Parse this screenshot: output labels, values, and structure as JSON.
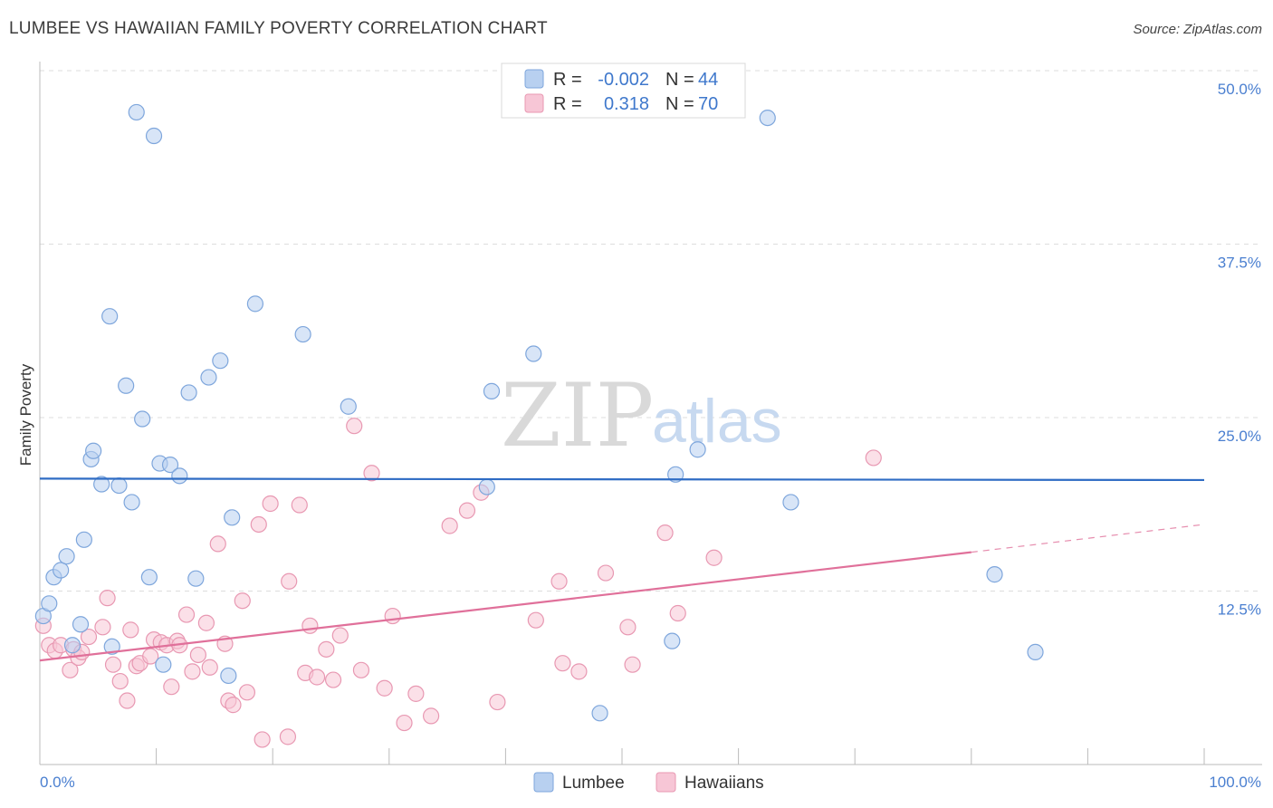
{
  "title": "LUMBEE VS HAWAIIAN FAMILY POVERTY CORRELATION CHART",
  "source": "Source: ZipAtlas.com",
  "watermark": {
    "zip": "ZIP",
    "atlas": "atlas"
  },
  "colors": {
    "lumbee_fill": "#b8d0f0",
    "lumbee_stroke": "#7ea6dc",
    "lumbee_line": "#2f6cc4",
    "hawaiian_fill": "#f7c6d6",
    "hawaiian_stroke": "#e898b2",
    "hawaiian_line": "#e0709a",
    "tick_text": "#4a7fd0",
    "grid": "#dddddd"
  },
  "legend_top": {
    "rows": [
      {
        "series": "Lumbee",
        "r_label": "R =",
        "r_value": "-0.002",
        "n_label": "N =",
        "n_value": "44"
      },
      {
        "series": "Hawaiians",
        "r_label": "R =",
        "r_value": "0.318",
        "n_label": "N =",
        "n_value": "70"
      }
    ]
  },
  "chart_data": {
    "type": "scatter",
    "title": "LUMBEE VS HAWAIIAN FAMILY POVERTY CORRELATION CHART",
    "xlabel": "",
    "ylabel": "Family Poverty",
    "xlim": [
      0,
      100
    ],
    "ylim": [
      0,
      50
    ],
    "x_tick_labels": [
      "0.0%",
      "100.0%"
    ],
    "y_ticks": [
      12.5,
      25.0,
      37.5,
      50.0
    ],
    "y_tick_labels": [
      "12.5%",
      "25.0%",
      "37.5%",
      "50.0%"
    ],
    "legend": [
      "Lumbee",
      "Hawaiians"
    ],
    "series": [
      {
        "name": "Lumbee",
        "r": -0.002,
        "n": 44,
        "trend": {
          "x": [
            0,
            100
          ],
          "y": [
            20.6,
            20.5
          ]
        },
        "points": [
          [
            0.3,
            10.7
          ],
          [
            0.8,
            11.6
          ],
          [
            1.2,
            13.5
          ],
          [
            1.8,
            14.0
          ],
          [
            2.3,
            15.0
          ],
          [
            2.8,
            8.6
          ],
          [
            3.5,
            10.1
          ],
          [
            3.8,
            16.2
          ],
          [
            4.4,
            22.0
          ],
          [
            4.6,
            22.6
          ],
          [
            5.3,
            20.2
          ],
          [
            6.0,
            32.3
          ],
          [
            6.2,
            8.5
          ],
          [
            6.8,
            20.1
          ],
          [
            7.4,
            27.3
          ],
          [
            7.9,
            18.9
          ],
          [
            8.3,
            47.0
          ],
          [
            8.8,
            24.9
          ],
          [
            9.4,
            13.5
          ],
          [
            9.8,
            45.3
          ],
          [
            10.3,
            21.7
          ],
          [
            10.6,
            7.2
          ],
          [
            11.2,
            21.6
          ],
          [
            12.0,
            20.8
          ],
          [
            12.8,
            26.8
          ],
          [
            13.4,
            13.4
          ],
          [
            14.5,
            27.9
          ],
          [
            15.5,
            29.1
          ],
          [
            16.2,
            6.4
          ],
          [
            16.5,
            17.8
          ],
          [
            18.5,
            33.2
          ],
          [
            22.6,
            31.0
          ],
          [
            26.5,
            25.8
          ],
          [
            38.4,
            20.0
          ],
          [
            38.8,
            26.9
          ],
          [
            42.4,
            29.6
          ],
          [
            48.1,
            3.7
          ],
          [
            54.3,
            8.9
          ],
          [
            54.6,
            20.9
          ],
          [
            56.5,
            22.7
          ],
          [
            62.5,
            46.6
          ],
          [
            64.5,
            18.9
          ],
          [
            82.0,
            13.7
          ],
          [
            85.5,
            8.1
          ]
        ]
      },
      {
        "name": "Hawaiians",
        "r": 0.318,
        "n": 70,
        "trend": {
          "x": [
            0,
            80
          ],
          "y": [
            7.5,
            15.3
          ]
        },
        "trend_dashed": {
          "x": [
            80,
            100
          ],
          "y": [
            15.3,
            17.3
          ]
        },
        "points": [
          [
            0.3,
            10.0
          ],
          [
            0.8,
            8.6
          ],
          [
            1.3,
            8.2
          ],
          [
            1.8,
            8.6
          ],
          [
            2.6,
            6.8
          ],
          [
            2.9,
            8.3
          ],
          [
            3.3,
            7.7
          ],
          [
            3.6,
            8.1
          ],
          [
            4.2,
            9.2
          ],
          [
            5.4,
            9.9
          ],
          [
            5.8,
            12.0
          ],
          [
            6.3,
            7.2
          ],
          [
            6.9,
            6.0
          ],
          [
            7.5,
            4.6
          ],
          [
            7.8,
            9.7
          ],
          [
            8.3,
            7.1
          ],
          [
            8.6,
            7.3
          ],
          [
            9.5,
            7.8
          ],
          [
            9.8,
            9.0
          ],
          [
            10.4,
            8.8
          ],
          [
            10.9,
            8.6
          ],
          [
            11.3,
            5.6
          ],
          [
            11.8,
            8.9
          ],
          [
            12.0,
            8.6
          ],
          [
            12.6,
            10.8
          ],
          [
            13.1,
            6.7
          ],
          [
            13.6,
            7.9
          ],
          [
            14.3,
            10.2
          ],
          [
            14.6,
            7.0
          ],
          [
            15.3,
            15.9
          ],
          [
            15.9,
            8.7
          ],
          [
            16.2,
            4.6
          ],
          [
            16.6,
            4.3
          ],
          [
            17.4,
            11.8
          ],
          [
            17.8,
            5.2
          ],
          [
            18.8,
            17.3
          ],
          [
            19.1,
            1.8
          ],
          [
            19.8,
            18.8
          ],
          [
            21.3,
            2.0
          ],
          [
            21.4,
            13.2
          ],
          [
            22.3,
            18.7
          ],
          [
            22.8,
            6.6
          ],
          [
            23.2,
            10.0
          ],
          [
            23.8,
            6.3
          ],
          [
            24.6,
            8.3
          ],
          [
            25.2,
            6.1
          ],
          [
            25.8,
            9.3
          ],
          [
            27.0,
            24.4
          ],
          [
            27.6,
            6.8
          ],
          [
            28.5,
            21.0
          ],
          [
            29.6,
            5.5
          ],
          [
            30.3,
            10.7
          ],
          [
            31.3,
            3.0
          ],
          [
            32.3,
            5.1
          ],
          [
            33.6,
            3.5
          ],
          [
            35.2,
            17.2
          ],
          [
            36.7,
            18.3
          ],
          [
            37.9,
            19.6
          ],
          [
            39.3,
            4.5
          ],
          [
            42.6,
            10.4
          ],
          [
            44.6,
            13.2
          ],
          [
            44.9,
            7.3
          ],
          [
            46.3,
            6.7
          ],
          [
            48.6,
            13.8
          ],
          [
            50.5,
            9.9
          ],
          [
            50.9,
            7.2
          ],
          [
            53.7,
            16.7
          ],
          [
            54.8,
            10.9
          ],
          [
            57.9,
            14.9
          ],
          [
            71.6,
            22.1
          ]
        ]
      }
    ]
  },
  "bottom_legend": [
    "Lumbee",
    "Hawaiians"
  ]
}
